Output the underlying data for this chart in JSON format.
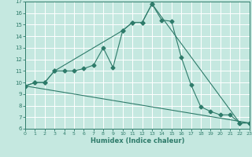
{
  "xlabel": "Humidex (Indice chaleur)",
  "bg_color": "#c5e8e0",
  "grid_color": "#ffffff",
  "line_color": "#2e7b6a",
  "xlim": [
    0,
    23
  ],
  "ylim": [
    6,
    17
  ],
  "yticks": [
    6,
    7,
    8,
    9,
    10,
    11,
    12,
    13,
    14,
    15,
    16,
    17
  ],
  "xticks": [
    0,
    1,
    2,
    3,
    4,
    5,
    6,
    7,
    8,
    9,
    10,
    11,
    12,
    13,
    14,
    15,
    16,
    17,
    18,
    19,
    20,
    21,
    22,
    23
  ],
  "line1_x": [
    0,
    1,
    2,
    3,
    4,
    5,
    6,
    7,
    8,
    9,
    10,
    11,
    12,
    13,
    14,
    15,
    16,
    17,
    18,
    19,
    20,
    21,
    22,
    23
  ],
  "line1_y": [
    9.7,
    10.0,
    10.0,
    11.0,
    11.0,
    11.0,
    11.2,
    11.5,
    13.0,
    11.3,
    14.5,
    15.2,
    15.2,
    16.8,
    15.4,
    15.3,
    12.2,
    9.8,
    7.9,
    7.5,
    7.2,
    7.2,
    6.5,
    6.5
  ],
  "line2_x": [
    0,
    1,
    2,
    3,
    10,
    11,
    12,
    13,
    22,
    23
  ],
  "line2_y": [
    9.7,
    10.0,
    10.0,
    11.0,
    14.5,
    15.2,
    15.2,
    16.8,
    6.5,
    6.5
  ],
  "line3_x": [
    0,
    23
  ],
  "line3_y": [
    9.7,
    6.5
  ]
}
